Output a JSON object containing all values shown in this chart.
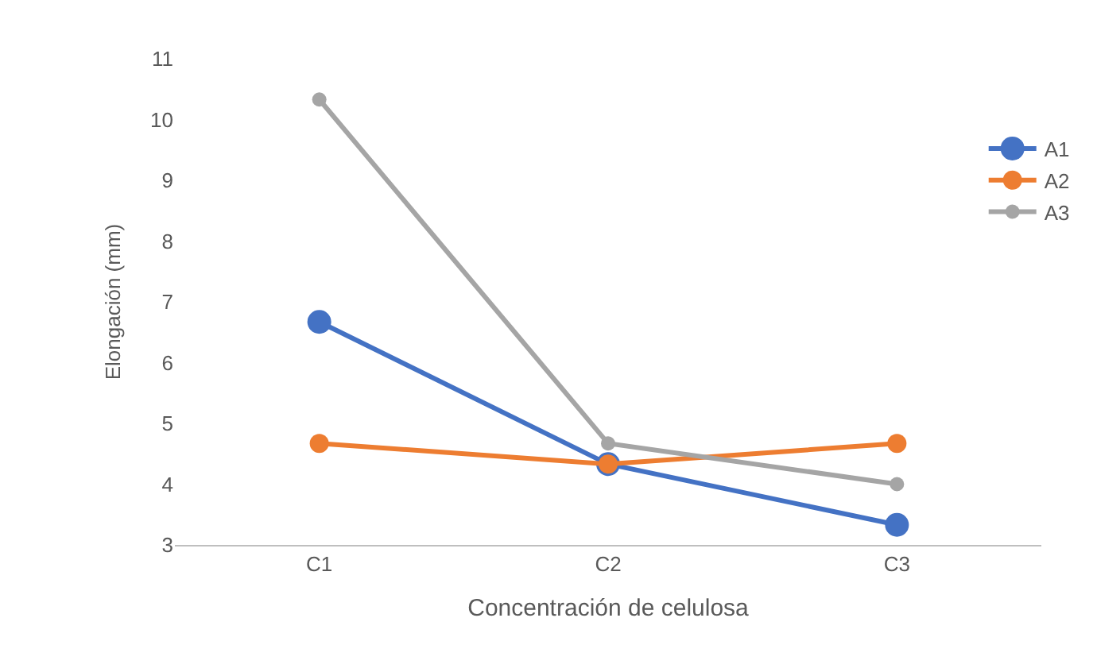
{
  "chart_data": {
    "type": "line",
    "xlabel": "Concentración de celulosa",
    "ylabel": "Elongación (mm)",
    "categories": [
      "C1",
      "C2",
      "C3"
    ],
    "series": [
      {
        "name": "A1",
        "color": "#4472c4",
        "values": [
          6.67,
          4.33,
          3.33
        ]
      },
      {
        "name": "A2",
        "color": "#ed7d31",
        "values": [
          4.67,
          4.33,
          4.67
        ]
      },
      {
        "name": "A3",
        "color": "#a5a5a5",
        "values": [
          10.33,
          4.67,
          4.0
        ]
      }
    ],
    "ylim": [
      3,
      11
    ],
    "yticks": [
      3,
      4,
      5,
      6,
      7,
      8,
      9,
      10,
      11
    ],
    "marker": "circle",
    "legend": "right",
    "grid": false
  }
}
